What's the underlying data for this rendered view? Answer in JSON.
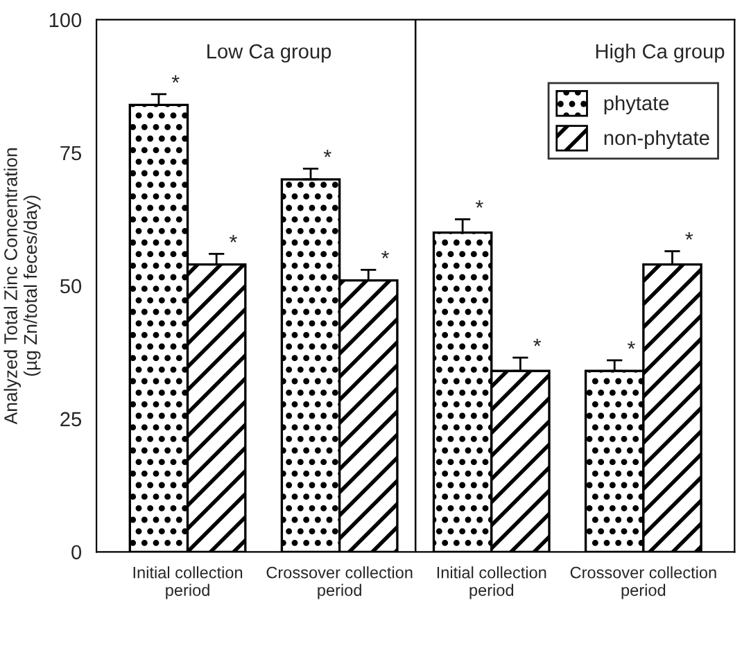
{
  "chart_data": {
    "type": "bar",
    "ylabel": "Analyzed Total Zinc Concentration\n(µg Zn/total feces/day)",
    "categories": [
      "Initial collection\nperiod",
      "Crossover collection\nperiod",
      "Initial collection\nperiod",
      "Crossover collection\nperiod"
    ],
    "series": [
      {
        "name": "phytate",
        "color": "#000000",
        "values": [
          84,
          70,
          60,
          34
        ],
        "errors": [
          2,
          2,
          2.5,
          2
        ],
        "value_labels": [
          "*",
          "*",
          "*",
          "*"
        ]
      },
      {
        "name": "non-phytate",
        "color": "#000000",
        "values": [
          54,
          51,
          34,
          54
        ],
        "errors": [
          2,
          2,
          2.5,
          2.5
        ],
        "value_labels": [
          "*",
          "*",
          "*",
          "*"
        ]
      }
    ],
    "ylim": [
      0,
      100
    ],
    "yticks": [
      0,
      25,
      50,
      75,
      100
    ],
    "annotations": [
      "Low Ca group",
      "High Ca group"
    ],
    "grid": false,
    "legend": "top right"
  }
}
